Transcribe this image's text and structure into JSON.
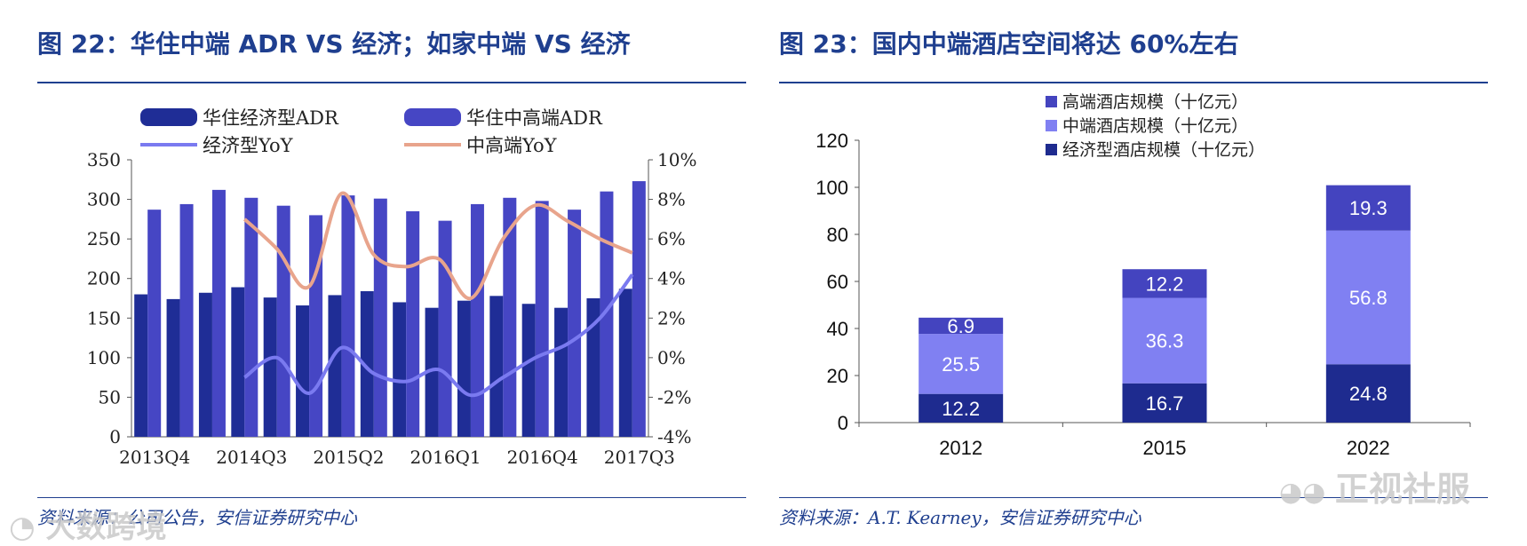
{
  "left_panel": {
    "title": "图 22：华住中端 ADR VS 经济；如家中端 VS 经济",
    "source": "资料来源：公司公告，安信证券研究中心"
  },
  "right_panel": {
    "title": "图 23：国内中端酒店空间将达 60%左右",
    "source": "资料来源：A.T. Kearney，安信证券研究中心"
  },
  "watermarks": {
    "left": "大数跨境",
    "right": "正视社服"
  },
  "colors": {
    "title_blue": "#1f3f8f",
    "econ_bar": "#1f2d96",
    "mid_bar": "#4646c4",
    "econ_yoy": "#7a7af0",
    "mid_yoy": "#e8a48c",
    "stack_econ": "#1e2b8f",
    "stack_mid": "#8080f2",
    "stack_high": "#4444bf"
  },
  "chart_data": [
    {
      "type": "bar",
      "title": "华住中端 ADR VS 经济；如家中端 VS 经济",
      "categories": [
        "2013Q4",
        "2014Q1",
        "2014Q2",
        "2014Q3",
        "2014Q4",
        "2015Q1",
        "2015Q2",
        "2015Q3",
        "2015Q4",
        "2016Q1",
        "2016Q2",
        "2016Q3",
        "2016Q4",
        "2017Q1",
        "2017Q2",
        "2017Q3"
      ],
      "xtick_labels": [
        "2013Q4",
        "2014Q3",
        "2015Q2",
        "2016Q1",
        "2016Q4",
        "2017Q3"
      ],
      "series": [
        {
          "name": "华住经济型ADR",
          "kind": "bar",
          "axis": "left",
          "values": [
            180,
            174,
            182,
            189,
            176,
            166,
            179,
            184,
            170,
            163,
            172,
            178,
            168,
            163,
            175,
            187
          ]
        },
        {
          "name": "华住中高端ADR",
          "kind": "bar",
          "axis": "left",
          "values": [
            287,
            294,
            312,
            302,
            292,
            280,
            305,
            301,
            285,
            273,
            294,
            302,
            298,
            287,
            310,
            323
          ]
        },
        {
          "name": "经济型YoY",
          "kind": "line",
          "axis": "right",
          "values": [
            null,
            null,
            null,
            -1.0,
            0.0,
            -1.8,
            0.5,
            -0.8,
            -1.2,
            -0.6,
            -1.9,
            -1.0,
            0.0,
            0.7,
            2.0,
            4.2
          ]
        },
        {
          "name": "中高端YoY",
          "kind": "line",
          "axis": "right",
          "values": [
            null,
            null,
            null,
            7.0,
            5.5,
            3.6,
            8.3,
            5.2,
            4.6,
            5.0,
            3.0,
            6.0,
            7.7,
            6.9,
            6.0,
            5.3
          ]
        }
      ],
      "ylim_left": [
        0,
        350
      ],
      "yticks_left": [
        0,
        50,
        100,
        150,
        200,
        250,
        300,
        350
      ],
      "ylim_right": [
        -4,
        10
      ],
      "yticks_right": [
        "-4%",
        "-2%",
        "0%",
        "2%",
        "4%",
        "6%",
        "8%",
        "10%"
      ],
      "legend": [
        "华住经济型ADR",
        "华住中高端ADR",
        "经济型YoY",
        "中高端YoY"
      ]
    },
    {
      "type": "bar",
      "stacked": true,
      "title": "国内中端酒店空间将达 60%左右",
      "categories": [
        "2012",
        "2015",
        "2022"
      ],
      "series": [
        {
          "name": "经济型酒店规模（十亿元）",
          "values": [
            12.2,
            16.7,
            24.8
          ]
        },
        {
          "name": "中端酒店规模（十亿元）",
          "values": [
            25.5,
            36.3,
            56.8
          ]
        },
        {
          "name": "高端酒店规模（十亿元）",
          "values": [
            6.9,
            12.2,
            19.3
          ]
        }
      ],
      "ylim": [
        0,
        120
      ],
      "yticks": [
        0,
        20,
        40,
        60,
        80,
        100,
        120
      ],
      "legend": [
        "高端酒店规模（十亿元）",
        "中端酒店规模（十亿元）",
        "经济型酒店规模（十亿元）"
      ]
    }
  ]
}
